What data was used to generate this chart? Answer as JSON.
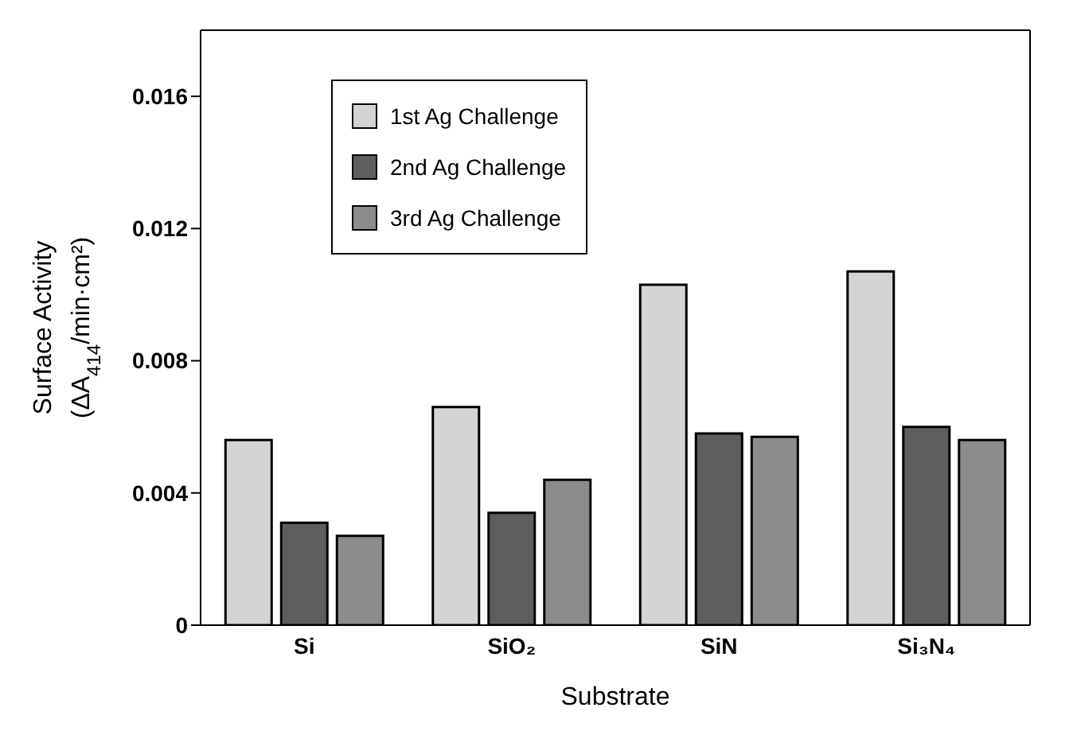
{
  "chart_data": {
    "type": "bar",
    "xlabel": "Substrate",
    "ylabel": "Surface Activity (ΔA$_{414}$/min·cm²)",
    "categories": [
      "Si",
      "SiO₂",
      "SiN",
      "Si₃N₄"
    ],
    "series": [
      {
        "name": "1st Ag Challenge",
        "color": "#d4d4d4",
        "values": [
          0.0056,
          0.0066,
          0.0103,
          0.0107
        ]
      },
      {
        "name": "2nd Ag Challenge",
        "color": "#5e5e5e",
        "values": [
          0.0031,
          0.0034,
          0.0058,
          0.006
        ]
      },
      {
        "name": "3rd Ag Challenge",
        "color": "#8c8c8c",
        "values": [
          0.0027,
          0.0044,
          0.0057,
          0.0056
        ]
      }
    ],
    "ylim": [
      0,
      0.018
    ],
    "yticks": [
      0,
      0.004,
      0.008,
      0.012,
      0.016
    ],
    "grid": false,
    "legend": "top left"
  }
}
